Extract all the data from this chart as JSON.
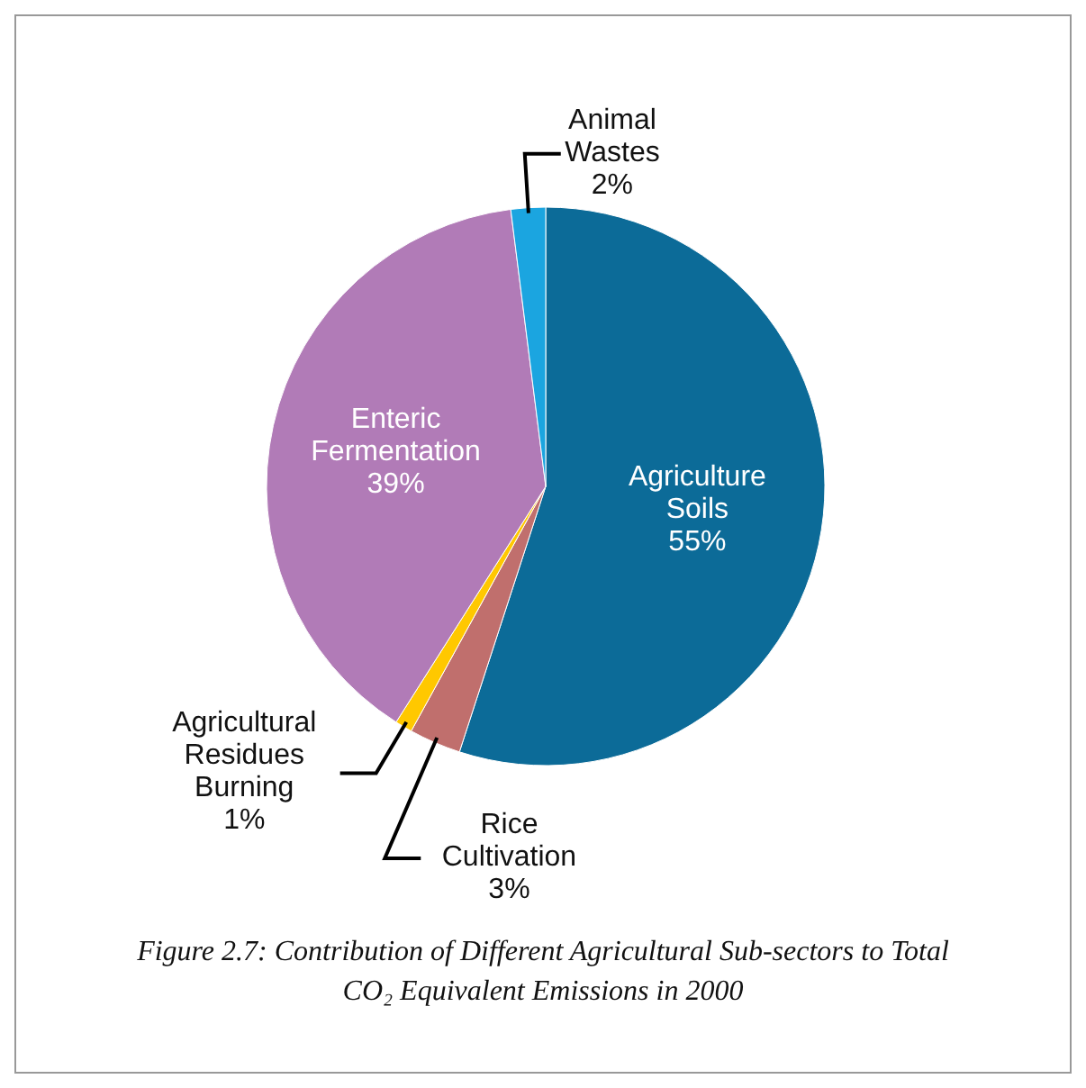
{
  "chart_data": {
    "type": "pie",
    "title": "Figure 2.7: Contribution of Different Agricultural Sub-sectors to Total CO₂ Equivalent Emissions in 2000",
    "categories": [
      "Agriculture Soils",
      "Rice Cultivation",
      "Agricultural Residues Burning",
      "Enteric Fermentation",
      "Animal Wastes"
    ],
    "values": [
      55,
      3,
      1,
      39,
      2
    ],
    "colors": [
      "#0c6b98",
      "#c06f6d",
      "#ffc800",
      "#b17bb7",
      "#1ba5e0"
    ],
    "value_labels": [
      "55%",
      "3%",
      "1%",
      "39%",
      "2%"
    ]
  }
}
